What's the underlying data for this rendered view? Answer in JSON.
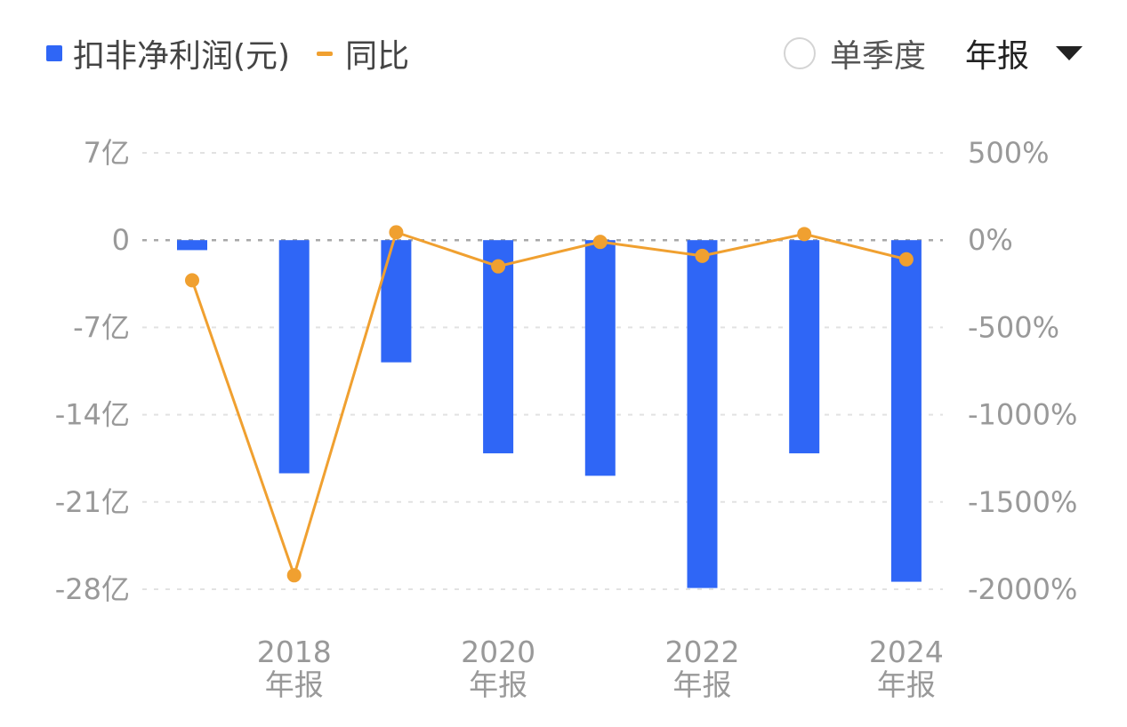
{
  "legend": {
    "bar_label": "扣非净利润(元)",
    "line_label": "同比"
  },
  "controls": {
    "quarterly_label": "单季度",
    "period_label": "年报"
  },
  "colors": {
    "bar": "#2f66f6",
    "line": "#f0a030"
  },
  "chart_data": {
    "type": "bar",
    "categories": [
      "2017年报",
      "2018年报",
      "2019年报",
      "2020年报",
      "2021年报",
      "2022年报",
      "2023年报",
      "2024年报"
    ],
    "x_tick_labels": [
      {
        "index": 1,
        "year": "2018",
        "period": "年报"
      },
      {
        "index": 3,
        "year": "2020",
        "period": "年报"
      },
      {
        "index": 5,
        "year": "2022",
        "period": "年报"
      },
      {
        "index": 7,
        "year": "2024",
        "period": "年报"
      }
    ],
    "series": [
      {
        "name": "扣非净利润(元)",
        "type": "bar",
        "axis": "left",
        "unit": "亿",
        "values": [
          -0.8,
          -18.7,
          -9.8,
          -17.1,
          -18.9,
          -27.9,
          -17.1,
          -27.4
        ]
      },
      {
        "name": "同比",
        "type": "line",
        "axis": "right",
        "unit": "%",
        "values": [
          -230,
          -1920,
          45,
          -150,
          -10,
          -90,
          35,
          -110
        ]
      }
    ],
    "y_left": {
      "ticks": [
        7,
        0,
        -7,
        -14,
        -21,
        -28
      ],
      "tick_labels": [
        "7亿",
        "0",
        "-7亿",
        "-14亿",
        "-21亿",
        "-28亿"
      ],
      "range": [
        -28,
        7
      ]
    },
    "y_right": {
      "ticks": [
        500,
        0,
        -500,
        -1000,
        -1500,
        -2000
      ],
      "tick_labels": [
        "500%",
        "0%",
        "-500%",
        "-1000%",
        "-1500%",
        "-2000%"
      ],
      "range": [
        -2000,
        500
      ]
    },
    "grid": true,
    "legend_position": "top-left"
  }
}
